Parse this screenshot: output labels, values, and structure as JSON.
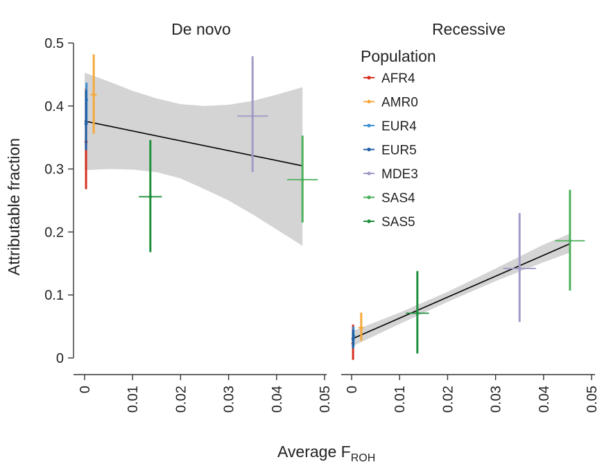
{
  "chart_data": {
    "type": "scatter",
    "ylabel": "Attributable fraction",
    "xlabel_main": "Average F",
    "xlabel_sub": "ROH",
    "ylim": [
      0,
      0.5
    ],
    "xlim": [
      0,
      0.05
    ],
    "yticks": [
      0,
      0.1,
      0.2,
      0.3,
      0.4,
      0.5
    ],
    "ytick_labels": [
      "0",
      "0.1",
      "0.2",
      "0.3",
      "0.4",
      "0.5"
    ],
    "xticks": [
      0,
      0.01,
      0.02,
      0.03,
      0.04,
      0.05
    ],
    "xtick_labels": [
      "0",
      "0.01",
      "0.02",
      "0.03",
      "0.04",
      "0.05"
    ],
    "legend": {
      "title": "Population",
      "position": "right",
      "entries": [
        {
          "name": "AFR4",
          "color": "#d7301f"
        },
        {
          "name": "AMR0",
          "color": "#f5a93c"
        },
        {
          "name": "EUR4",
          "color": "#3d8fd0"
        },
        {
          "name": "EUR5",
          "color": "#1f5fa6"
        },
        {
          "name": "MDE3",
          "color": "#a39ac8"
        },
        {
          "name": "SAS4",
          "color": "#4db05c"
        },
        {
          "name": "SAS5",
          "color": "#1e8f3c"
        }
      ]
    },
    "panels": [
      {
        "title": "De novo",
        "points": [
          {
            "pop": "AFR4",
            "x": 0.0003,
            "y": 0.343,
            "ylo": 0.268,
            "yhi": 0.428,
            "xlo": 0.0003,
            "xhi": 0.0003
          },
          {
            "pop": "AMR0",
            "x": 0.0019,
            "y": 0.418,
            "ylo": 0.356,
            "yhi": 0.482,
            "xlo": 0.0012,
            "xhi": 0.0026
          },
          {
            "pop": "EUR4",
            "x": 0.0004,
            "y": 0.41,
            "ylo": 0.37,
            "yhi": 0.437,
            "xlo": 0.0003,
            "xhi": 0.0005
          },
          {
            "pop": "EUR5",
            "x": 0.0003,
            "y": 0.372,
            "ylo": 0.33,
            "yhi": 0.425,
            "xlo": 0.0002,
            "xhi": 0.0004
          },
          {
            "pop": "MDE3",
            "x": 0.035,
            "y": 0.384,
            "ylo": 0.295,
            "yhi": 0.479,
            "xlo": 0.0318,
            "xhi": 0.0382
          },
          {
            "pop": "SAS4",
            "x": 0.0454,
            "y": 0.283,
            "ylo": 0.215,
            "yhi": 0.353,
            "xlo": 0.0422,
            "xhi": 0.0486
          },
          {
            "pop": "SAS5",
            "x": 0.0137,
            "y": 0.256,
            "ylo": 0.168,
            "yhi": 0.346,
            "xlo": 0.0113,
            "xhi": 0.0161
          }
        ],
        "fit": {
          "x0": 0.0,
          "y0": 0.376,
          "x1": 0.0454,
          "y1": 0.305
        },
        "band": [
          {
            "x": 0.0,
            "lo": 0.298,
            "hi": 0.453
          },
          {
            "x": 0.005,
            "lo": 0.3,
            "hi": 0.439
          },
          {
            "x": 0.01,
            "lo": 0.299,
            "hi": 0.424
          },
          {
            "x": 0.015,
            "lo": 0.295,
            "hi": 0.412
          },
          {
            "x": 0.02,
            "lo": 0.285,
            "hi": 0.403
          },
          {
            "x": 0.025,
            "lo": 0.268,
            "hi": 0.4
          },
          {
            "x": 0.03,
            "lo": 0.25,
            "hi": 0.402
          },
          {
            "x": 0.035,
            "lo": 0.228,
            "hi": 0.408
          },
          {
            "x": 0.04,
            "lo": 0.204,
            "hi": 0.418
          },
          {
            "x": 0.0454,
            "lo": 0.178,
            "hi": 0.43
          }
        ]
      },
      {
        "title": "Recessive",
        "points": [
          {
            "pop": "AFR4",
            "x": 0.0003,
            "y": 0.023,
            "ylo": -0.003,
            "yhi": 0.053,
            "xlo": 0.0003,
            "xhi": 0.0003
          },
          {
            "pop": "AMR0",
            "x": 0.002,
            "y": 0.048,
            "ylo": 0.027,
            "yhi": 0.072,
            "xlo": 0.0014,
            "xhi": 0.0026
          },
          {
            "pop": "EUR4",
            "x": 0.0004,
            "y": 0.035,
            "ylo": 0.018,
            "yhi": 0.05,
            "xlo": 0.0001,
            "xhi": 0.0007
          },
          {
            "pop": "EUR5",
            "x": 0.0003,
            "y": 0.03,
            "ylo": 0.015,
            "yhi": 0.045,
            "xlo": 0.0001,
            "xhi": 0.0005
          },
          {
            "pop": "MDE3",
            "x": 0.035,
            "y": 0.142,
            "ylo": 0.057,
            "yhi": 0.23,
            "xlo": 0.0316,
            "xhi": 0.0384
          },
          {
            "pop": "SAS4",
            "x": 0.0455,
            "y": 0.186,
            "ylo": 0.107,
            "yhi": 0.267,
            "xlo": 0.0424,
            "xhi": 0.0486
          },
          {
            "pop": "SAS5",
            "x": 0.0137,
            "y": 0.071,
            "ylo": 0.007,
            "yhi": 0.138,
            "xlo": 0.0113,
            "xhi": 0.0161
          }
        ],
        "fit": {
          "x0": 0.0,
          "y0": 0.03,
          "x1": 0.0454,
          "y1": 0.181
        },
        "band": [
          {
            "x": 0.0,
            "lo": 0.018,
            "hi": 0.042
          },
          {
            "x": 0.01,
            "lo": 0.054,
            "hi": 0.072
          },
          {
            "x": 0.02,
            "lo": 0.089,
            "hi": 0.105
          },
          {
            "x": 0.03,
            "lo": 0.122,
            "hi": 0.142
          },
          {
            "x": 0.04,
            "lo": 0.152,
            "hi": 0.18
          },
          {
            "x": 0.0454,
            "lo": 0.167,
            "hi": 0.197
          }
        ]
      }
    ]
  }
}
